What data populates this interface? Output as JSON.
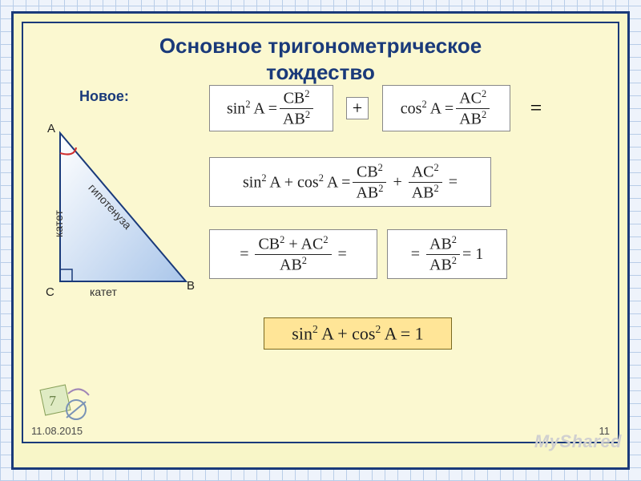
{
  "title_line1": "Основное тригонометрическое",
  "title_line2": "тождество",
  "title_fontsize": "26px",
  "new_label": "Новое:",
  "triangle": {
    "stroke": "#1a3a7a",
    "fill_from": "#ffffff",
    "fill_to": "#aac6ea",
    "angle_arc_color": "#d03030",
    "right_angle_color": "#1a3a7a",
    "vertex_A": "А",
    "vertex_B": "В",
    "vertex_C": "С",
    "label_leg_v": "катет",
    "label_leg_h": "катет",
    "label_hyp": "гипотенуза"
  },
  "formulas": {
    "sin2": {
      "lhs": "sin<sup>2</sup> A =",
      "num": "CB<sup>2</sup>",
      "den": "AB<sup>2</sup>"
    },
    "cos2": {
      "lhs": "cos<sup>2</sup> A =",
      "num": "AC<sup>2</sup>",
      "den": "AB<sup>2</sup>"
    },
    "plus": "+",
    "equals": "=",
    "sum": {
      "lhs": "sin<sup>2</sup> A + cos<sup>2</sup> A =",
      "num1": "CB<sup>2</sup>",
      "den1": "AB<sup>2</sup>",
      "num2": "AC<sup>2</sup>",
      "den2": "AB<sup>2</sup>"
    },
    "step3a": {
      "num": "CB<sup>2</sup> + AC<sup>2</sup>",
      "den": "AB<sup>2</sup>"
    },
    "step3b": {
      "num": "AB<sup>2</sup>",
      "den": "AB<sup>2</sup>",
      "rhs": "= 1"
    },
    "final": "sin<sup>2</sup> A + cos<sup>2</sup> A = 1"
  },
  "footer": {
    "date": "11.08.2015",
    "page": "11"
  },
  "watermark": "MyShared",
  "colors": {
    "frame": "#1a3a7a",
    "slide_bg": "#fbf8d0",
    "outer_bg": "#f8f6c8",
    "final_bg": "#ffe597"
  }
}
